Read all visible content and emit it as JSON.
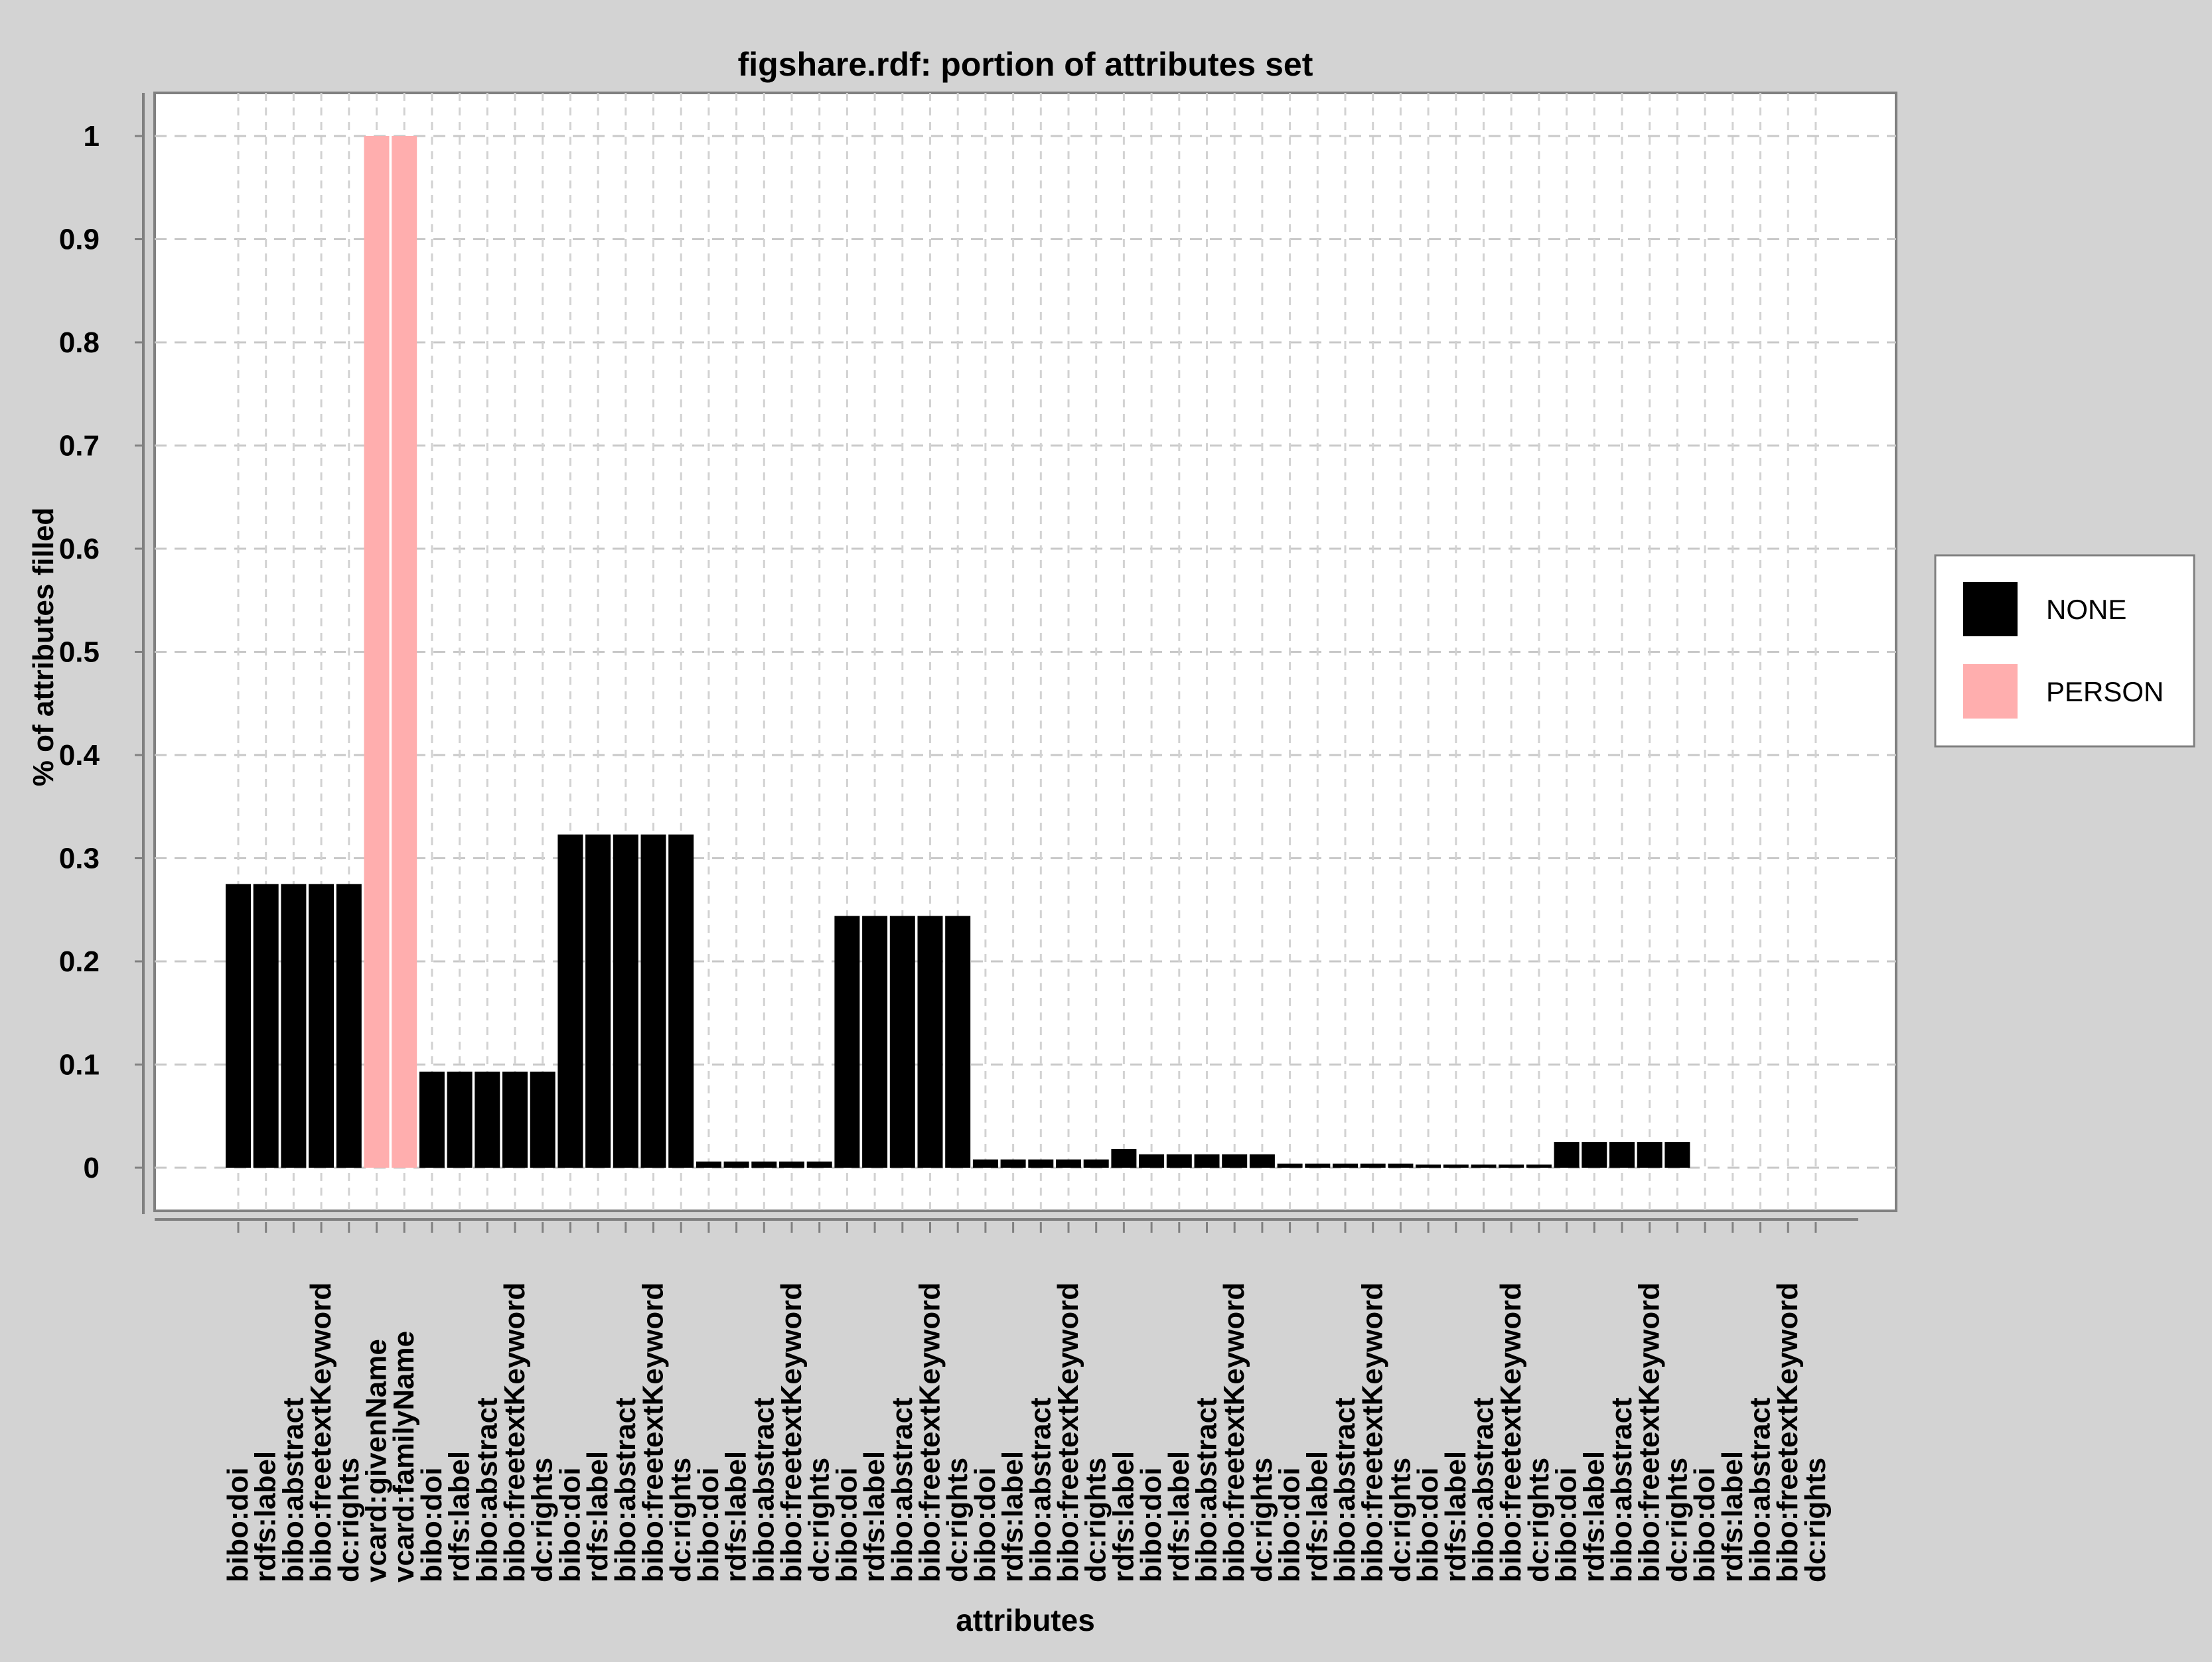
{
  "chart_data": {
    "type": "bar",
    "title": "figshare.rdf: portion of attributes set",
    "xlabel": "attributes",
    "ylabel": "% of attributes filled",
    "ylim": [
      0,
      1.04
    ],
    "yticks": [
      "0",
      "0.1",
      "0.2",
      "0.3",
      "0.4",
      "0.5",
      "0.6",
      "0.7",
      "0.8",
      "0.9",
      "1"
    ],
    "grid": true,
    "legend_position": "right",
    "series": [
      {
        "name": "NONE",
        "color": "#000000"
      },
      {
        "name": "PERSON",
        "color": "#ffaeae"
      }
    ],
    "categories": [
      "bibo:doi",
      "rdfs:label",
      "bibo:abstract",
      "bibo:freetextKeyword",
      "dc:rights",
      "vcard:givenName",
      "vcard:familyName",
      "bibo:doi",
      "rdfs:label",
      "bibo:abstract",
      "bibo:freetextKeyword",
      "dc:rights",
      "bibo:doi",
      "rdfs:label",
      "bibo:abstract",
      "bibo:freetextKeyword",
      "dc:rights",
      "bibo:doi",
      "rdfs:label",
      "bibo:abstract",
      "bibo:freetextKeyword",
      "dc:rights",
      "bibo:doi",
      "rdfs:label",
      "bibo:abstract",
      "bibo:freetextKeyword",
      "dc:rights",
      "bibo:doi",
      "rdfs:label",
      "bibo:abstract",
      "bibo:freetextKeyword",
      "dc:rights",
      "rdfs:label",
      "bibo:doi",
      "rdfs:label",
      "bibo:abstract",
      "bibo:freetextKeyword",
      "dc:rights",
      "bibo:doi",
      "rdfs:label",
      "bibo:abstract",
      "bibo:freetextKeyword",
      "dc:rights",
      "bibo:doi",
      "rdfs:label",
      "bibo:abstract",
      "bibo:freetextKeyword",
      "dc:rights",
      "bibo:doi",
      "rdfs:label",
      "bibo:abstract",
      "bibo:freetextKeyword",
      "dc:rights",
      "bibo:doi",
      "rdfs:label",
      "bibo:abstract",
      "bibo:freetextKeyword",
      "dc:rights"
    ],
    "values": [
      0.275,
      0.275,
      0.275,
      0.275,
      0.275,
      1.0,
      1.0,
      0.093,
      0.093,
      0.093,
      0.093,
      0.093,
      0.323,
      0.323,
      0.323,
      0.323,
      0.323,
      0.006,
      0.006,
      0.006,
      0.006,
      0.006,
      0.244,
      0.244,
      0.244,
      0.244,
      0.244,
      0.008,
      0.008,
      0.008,
      0.008,
      0.008,
      0.018,
      0.013,
      0.013,
      0.013,
      0.013,
      0.013,
      0.004,
      0.004,
      0.004,
      0.004,
      0.004,
      0.003,
      0.003,
      0.003,
      0.003,
      0.003,
      0.025,
      0.025,
      0.025,
      0.025,
      0.025,
      0.0,
      0.0,
      0.0,
      0.0,
      0.0
    ],
    "bar_series": [
      "NONE",
      "NONE",
      "NONE",
      "NONE",
      "NONE",
      "PERSON",
      "PERSON",
      "NONE",
      "NONE",
      "NONE",
      "NONE",
      "NONE",
      "NONE",
      "NONE",
      "NONE",
      "NONE",
      "NONE",
      "NONE",
      "NONE",
      "NONE",
      "NONE",
      "NONE",
      "NONE",
      "NONE",
      "NONE",
      "NONE",
      "NONE",
      "NONE",
      "NONE",
      "NONE",
      "NONE",
      "NONE",
      "NONE",
      "NONE",
      "NONE",
      "NONE",
      "NONE",
      "NONE",
      "NONE",
      "NONE",
      "NONE",
      "NONE",
      "NONE",
      "NONE",
      "NONE",
      "NONE",
      "NONE",
      "NONE",
      "NONE",
      "NONE",
      "NONE",
      "NONE",
      "NONE",
      "NONE",
      "NONE",
      "NONE",
      "NONE",
      "NONE"
    ]
  }
}
